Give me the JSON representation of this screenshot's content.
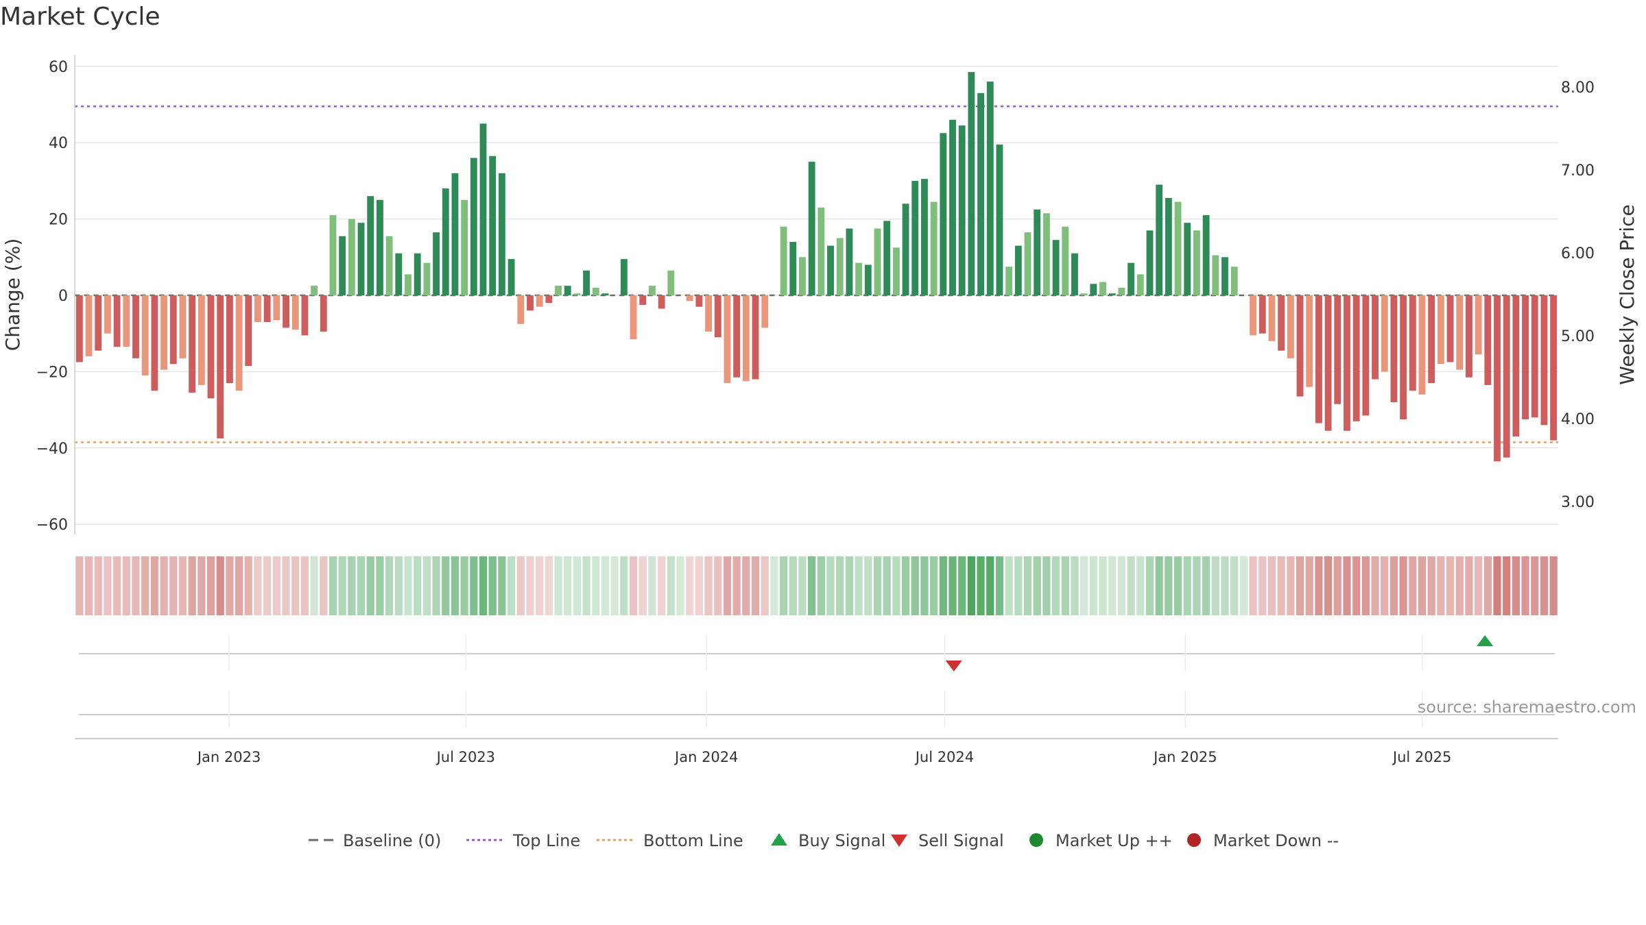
{
  "chart_data": {
    "type": "bar",
    "title": "Market Cycle",
    "ylabel": "Change (%)",
    "y2label": "Weekly Close Price",
    "ylim": [
      -60,
      60
    ],
    "yticks": [
      60,
      40,
      20,
      0,
      -20,
      -40,
      -60
    ],
    "ytick_labels": [
      "60",
      "40",
      "20",
      "0",
      "−20",
      "−40",
      "−60"
    ],
    "y2lim": [
      2.7,
      8.3
    ],
    "y2ticks": [
      8.0,
      7.0,
      6.0,
      5.0,
      4.0,
      3.0
    ],
    "y2tick_labels": [
      "8.00",
      "7.00",
      "6.00",
      "5.00",
      "4.00",
      "3.00"
    ],
    "top_line": 49.5,
    "bottom_line": -38.5,
    "x_start": "2022-09-05",
    "x_end": "2025-10-13",
    "date_ticks": [
      "Jan 2023",
      "Jul 2023",
      "Jan 2024",
      "Jul 2024",
      "Jan 2025",
      "Jul 2025"
    ],
    "values": [
      -17.5,
      -16,
      -14.5,
      -10,
      -13.5,
      -13.5,
      -16.5,
      -21,
      -25,
      -19.5,
      -18,
      -16.5,
      -25.5,
      -23.5,
      -27,
      -37.5,
      -23,
      -25,
      -18.5,
      -7,
      -7,
      -6.5,
      -8.5,
      -9,
      -10.5,
      2.5,
      -9.5,
      21,
      15.5,
      20,
      19,
      26,
      25,
      15.5,
      11,
      5.5,
      11,
      8.5,
      16.5,
      28,
      32,
      25,
      36,
      45,
      36.5,
      32,
      9.5,
      -7.5,
      -4,
      -3,
      -2,
      2.5,
      2.5,
      0.5,
      6.5,
      2,
      0.5,
      0,
      9.5,
      -11.5,
      -2.5,
      2.5,
      -3.5,
      6.5,
      0,
      -1.5,
      -3,
      -9.5,
      -11,
      -23,
      -21.5,
      -22.5,
      -22,
      -8.5,
      0,
      18,
      14,
      10,
      35,
      23,
      13,
      15,
      17.5,
      8.5,
      8,
      17.5,
      19.5,
      12.5,
      24,
      30,
      30.5,
      24.5,
      42.5,
      46,
      44.5,
      58.5,
      53,
      56,
      39.5,
      7.5,
      13,
      16.5,
      22.5,
      21.5,
      14.5,
      18,
      11,
      0.5,
      3,
      3.5,
      0.5,
      2,
      8.5,
      5.5,
      17,
      29,
      25.5,
      24.5,
      19,
      17,
      21,
      10.5,
      10,
      7.5,
      0,
      -10.5,
      -10,
      -12,
      -14.5,
      -16.5,
      -26.5,
      -24,
      -33.5,
      -35.5,
      -28.5,
      -35.5,
      -33,
      -31.5,
      -22,
      -20,
      -28,
      -32.5,
      -25,
      -26,
      -23,
      -18,
      -17.5,
      -19.5,
      -21.5,
      -15.5,
      -23.5,
      -43.5,
      -42.5,
      -37,
      -32.5,
      -32,
      -34,
      -38
    ],
    "sell_signal": {
      "date": "2024-07-08",
      "value": 0
    },
    "buy_signal": {
      "date": "2025-08-18",
      "value": 0
    },
    "source": "source: sharemaestro.com",
    "legend_position": "bottom-center",
    "legend": [
      {
        "label": "Baseline (0)",
        "marker": "dash",
        "color": "#6b6b6b"
      },
      {
        "label": "Top Line",
        "marker": "dot-line",
        "color": "#9b59d0"
      },
      {
        "label": "Bottom Line",
        "marker": "dot-line",
        "color": "#e0a060"
      },
      {
        "label": "Buy Signal",
        "marker": "triangle-up",
        "color": "#22a04a"
      },
      {
        "label": "Sell Signal",
        "marker": "triangle-down",
        "color": "#d03030"
      },
      {
        "label": "Market Up ++",
        "marker": "circle",
        "color": "#1e8a30"
      },
      {
        "label": "Market Down --",
        "marker": "circle",
        "color": "#b02525"
      }
    ],
    "colors": {
      "up_strong": "#2e8b57",
      "up_weak": "#7fbf7b",
      "down_strong": "#cd5c5c",
      "down_weak": "#e9967a",
      "grid": "#e6e6e6",
      "axis": "#cccccc"
    }
  }
}
